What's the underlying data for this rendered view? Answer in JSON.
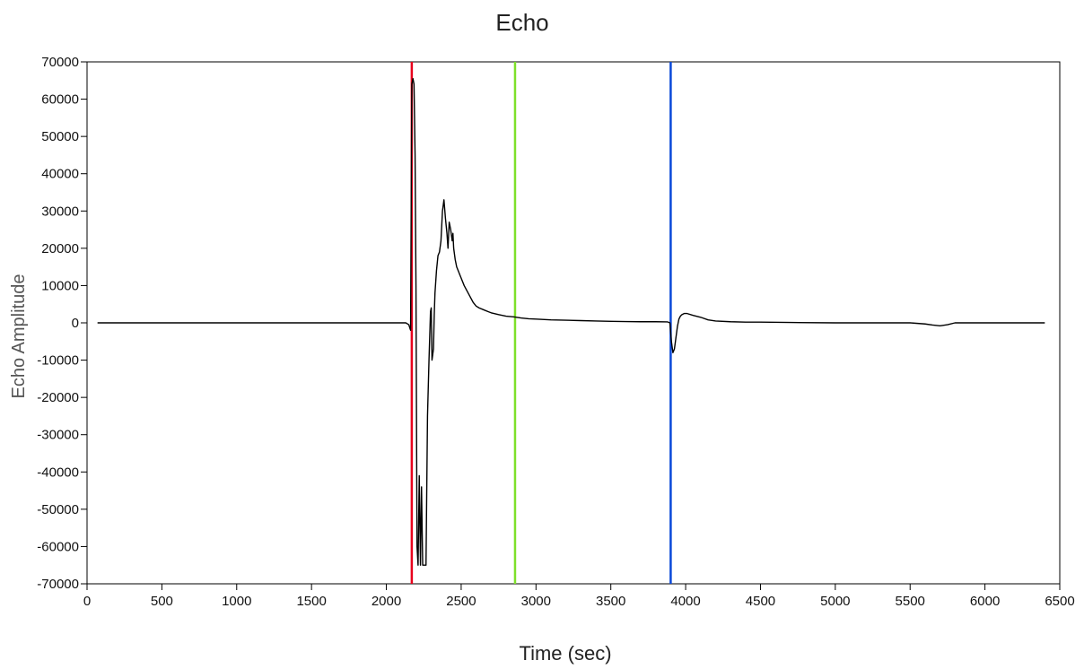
{
  "chart_data": {
    "type": "line",
    "title": "Echo",
    "xlabel": "Time (sec)",
    "ylabel": "Echo Amplitude",
    "xlim": [
      0,
      6500
    ],
    "ylim": [
      -70000,
      70000
    ],
    "xticks": [
      "0",
      "500",
      "1000",
      "1500",
      "2000",
      "2500",
      "3000",
      "3500",
      "4000",
      "4500",
      "5000",
      "5500",
      "6000",
      "6500"
    ],
    "yticks": [
      "70000",
      "60000",
      "50000",
      "40000",
      "30000",
      "20000",
      "10000",
      "0",
      "-10000",
      "-20000",
      "-30000",
      "-40000",
      "-50000",
      "-60000",
      "-70000"
    ],
    "grid": false,
    "markers": [
      {
        "x": 2170,
        "color": "#e8001c"
      },
      {
        "x": 2860,
        "color": "#7ee02a"
      },
      {
        "x": 3900,
        "color": "#0a49d9"
      }
    ],
    "series": [
      {
        "color": "#000000",
        "x": [
          70,
          500,
          1000,
          1500,
          2000,
          2130,
          2150,
          2162,
          2170,
          2178,
          2185,
          2192,
          2198,
          2205,
          2212,
          2220,
          2228,
          2235,
          2243,
          2250,
          2258,
          2265,
          2275,
          2285,
          2295,
          2300,
          2305,
          2315,
          2320,
          2325,
          2335,
          2345,
          2355,
          2365,
          2375,
          2385,
          2395,
          2405,
          2412,
          2420,
          2430,
          2440,
          2445,
          2450,
          2460,
          2470,
          2480,
          2490,
          2500,
          2520,
          2540,
          2560,
          2580,
          2600,
          2620,
          2650,
          2680,
          2700,
          2750,
          2800,
          2850,
          2900,
          2950,
          3000,
          3100,
          3200,
          3300,
          3400,
          3500,
          3600,
          3700,
          3800,
          3880,
          3895,
          3905,
          3915,
          3925,
          3935,
          3945,
          3955,
          3965,
          3975,
          3990,
          4010,
          4050,
          4100,
          4150,
          4200,
          4300,
          4400,
          4500,
          4700,
          5000,
          5300,
          5500,
          5600,
          5650,
          5700,
          5750,
          5800,
          6000,
          6200,
          6400
        ],
        "y": [
          0,
          0,
          0,
          0,
          0,
          0,
          -500,
          -2000,
          64000,
          65500,
          64000,
          45000,
          10000,
          -60000,
          -65000,
          -41000,
          -65000,
          -44000,
          -65000,
          -65000,
          -65000,
          -65000,
          -25000,
          -10000,
          3000,
          4000,
          -10000,
          -7000,
          2000,
          8000,
          14000,
          18000,
          19000,
          22000,
          30000,
          33000,
          28000,
          24000,
          20000,
          27000,
          25000,
          22000,
          24000,
          20000,
          17000,
          15000,
          14000,
          13000,
          12000,
          10000,
          8500,
          7000,
          5500,
          4500,
          4000,
          3500,
          3000,
          2700,
          2200,
          1800,
          1600,
          1300,
          1100,
          1000,
          800,
          700,
          600,
          500,
          400,
          350,
          300,
          300,
          250,
          0,
          -5000,
          -8000,
          -7000,
          -4000,
          -1000,
          1000,
          1800,
          2200,
          2500,
          2500,
          2000,
          1500,
          800,
          500,
          300,
          200,
          200,
          100,
          0,
          0,
          0,
          -300,
          -600,
          -800,
          -500,
          0,
          0,
          0,
          0
        ]
      }
    ]
  }
}
